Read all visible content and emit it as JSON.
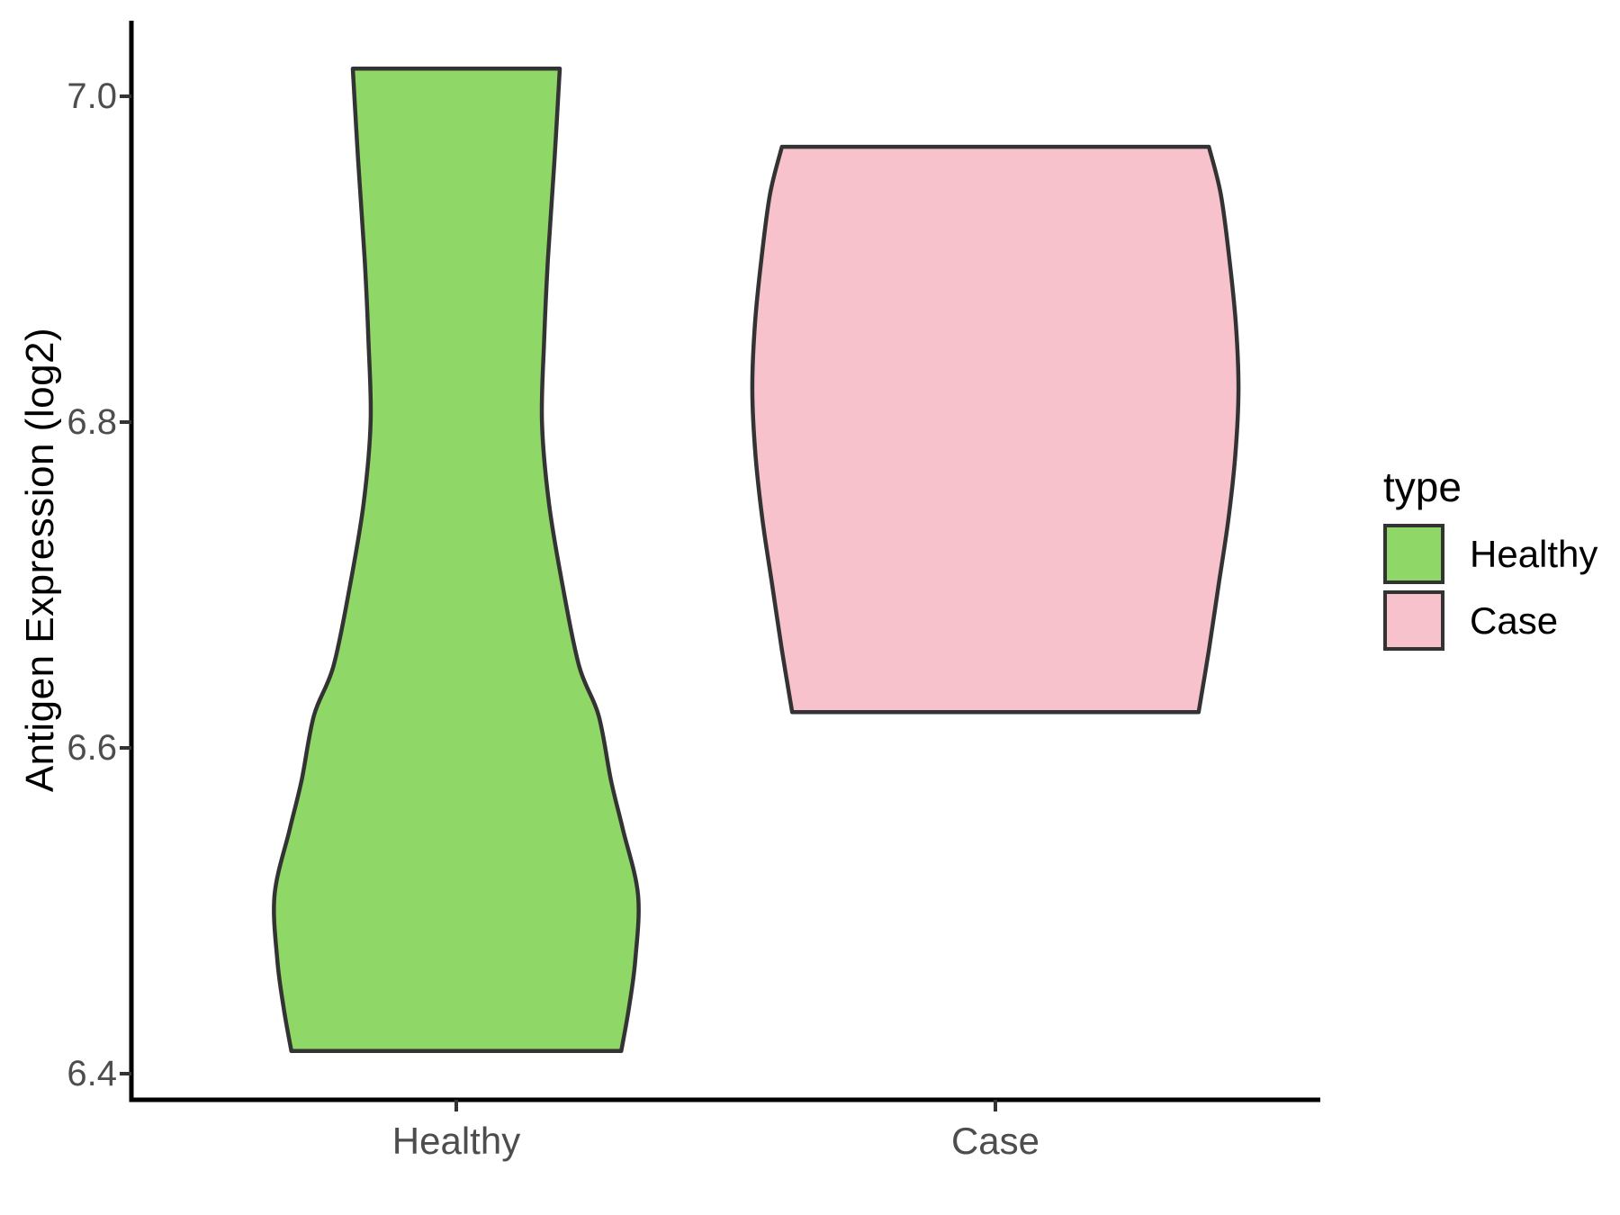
{
  "chart_data": {
    "type": "violin",
    "title": "",
    "xlabel": "",
    "ylabel": "Antigen Expression (log2)",
    "categories": [
      "Healthy",
      "Case"
    ],
    "y_ticks": [
      {
        "label": "7.0",
        "value": 7.0
      },
      {
        "label": "6.8",
        "value": 6.8
      },
      {
        "label": "6.6",
        "value": 6.6
      },
      {
        "label": "6.4",
        "value": 6.4
      }
    ],
    "ylim": [
      6.38,
      7.05
    ],
    "grid": false,
    "axis_line_color": "#000000",
    "tick_text_color": "#4d4d4d",
    "violin_outline_color": "#333333",
    "legend": {
      "title": "type",
      "position": "right",
      "entries": [
        {
          "label": "Healthy",
          "fill": "#8FD767"
        },
        {
          "label": "Case",
          "fill": "#F8C2CD"
        }
      ]
    },
    "series": [
      {
        "name": "Healthy",
        "fill": "#8FD767",
        "value_range": [
          6.414,
          7.017
        ],
        "peak_density_value": 6.51,
        "profile_value_halfwidth": [
          [
            7.017,
            0.192
          ],
          [
            6.96,
            0.182
          ],
          [
            6.9,
            0.17
          ],
          [
            6.85,
            0.163
          ],
          [
            6.8,
            0.159
          ],
          [
            6.75,
            0.172
          ],
          [
            6.7,
            0.197
          ],
          [
            6.65,
            0.228
          ],
          [
            6.62,
            0.264
          ],
          [
            6.58,
            0.287
          ],
          [
            6.55,
            0.309
          ],
          [
            6.51,
            0.337
          ],
          [
            6.47,
            0.332
          ],
          [
            6.44,
            0.32
          ],
          [
            6.414,
            0.306
          ]
        ]
      },
      {
        "name": "Case",
        "fill": "#F8C2CD",
        "value_range": [
          6.622,
          6.969
        ],
        "peak_density_value": 6.82,
        "profile_value_halfwidth": [
          [
            6.969,
            0.396
          ],
          [
            6.94,
            0.418
          ],
          [
            6.9,
            0.434
          ],
          [
            6.86,
            0.446
          ],
          [
            6.82,
            0.451
          ],
          [
            6.78,
            0.445
          ],
          [
            6.74,
            0.432
          ],
          [
            6.7,
            0.414
          ],
          [
            6.66,
            0.396
          ],
          [
            6.622,
            0.377
          ]
        ]
      }
    ]
  }
}
